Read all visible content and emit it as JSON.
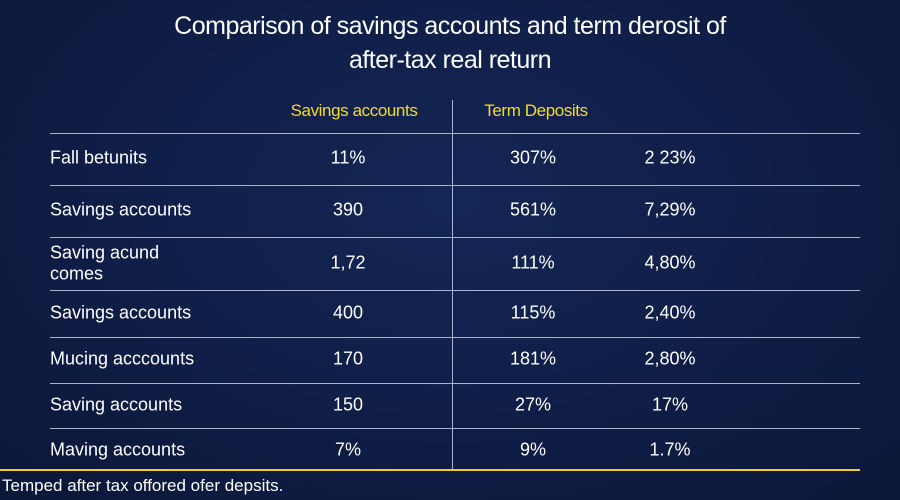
{
  "header": {
    "title": [
      "Comparison of savings accounts and term derosit of",
      "after-tax real return"
    ]
  },
  "table": {
    "columns": [
      "Savings accounts",
      "Term Deposits"
    ],
    "rows": [
      [
        "Fall betunits",
        "11%",
        "307%",
        "2 23%"
      ],
      [
        "Savings accounts",
        "390",
        "561%",
        "7,29%"
      ],
      [
        [
          "Saving acund",
          "comes"
        ],
        "1,72",
        "111%",
        "4,80%"
      ],
      [
        "Savings accounts",
        "400",
        "115%",
        "2,40%"
      ],
      [
        "Mucing acccounts",
        "170",
        "181%",
        "2,80%"
      ],
      [
        "Saving accounts",
        "150",
        "27%",
        "17%"
      ],
      [
        "Maving accounts",
        "7%",
        "9%",
        "1.7%"
      ]
    ]
  },
  "footer": {
    "note": "Temped after tax offored ofer depsits."
  }
}
